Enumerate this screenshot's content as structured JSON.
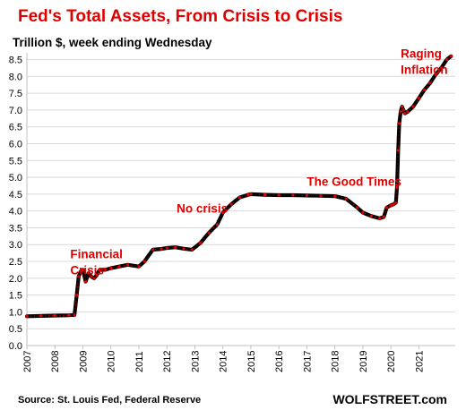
{
  "chart_data": {
    "type": "line",
    "title": "Fed's Total Assets, From Crisis to Crisis",
    "subtitle": "Trillion $, week ending Wednesday",
    "xlabel": "",
    "ylabel": "",
    "xlim": [
      2007,
      2022.3
    ],
    "ylim": [
      0,
      8.7
    ],
    "yticks": [
      "0.0",
      "0.5",
      "1.0",
      "1.5",
      "2.0",
      "2.5",
      "3.0",
      "3.5",
      "4.0",
      "4.5",
      "5.0",
      "5.5",
      "6.0",
      "6.5",
      "7.0",
      "7.5",
      "8.0",
      "8.5"
    ],
    "xticks": [
      "2007",
      "2008",
      "2009",
      "2010",
      "2011",
      "2012",
      "2013",
      "2014",
      "2015",
      "2016",
      "2017",
      "2018",
      "2019",
      "2020",
      "2021"
    ],
    "grid": true,
    "series": [
      {
        "line_color": "#000000",
        "marker_color": "#e00000",
        "x": [
          2007.0,
          2007.5,
          2008.0,
          2008.5,
          2008.7,
          2008.78,
          2008.85,
          2008.92,
          2009.0,
          2009.1,
          2009.2,
          2009.3,
          2009.4,
          2009.5,
          2009.6,
          2009.8,
          2010.0,
          2010.3,
          2010.6,
          2011.0,
          2011.2,
          2011.5,
          2011.8,
          2012.0,
          2012.3,
          2012.6,
          2012.9,
          2013.2,
          2013.5,
          2013.8,
          2014.0,
          2014.3,
          2014.6,
          2014.9,
          2015.0,
          2015.5,
          2016.0,
          2016.5,
          2017.0,
          2017.5,
          2018.0,
          2018.4,
          2018.8,
          2019.0,
          2019.3,
          2019.6,
          2019.75,
          2019.85,
          2020.0,
          2020.1,
          2020.18,
          2020.22,
          2020.26,
          2020.3,
          2020.35,
          2020.4,
          2020.45,
          2020.5,
          2020.6,
          2020.8,
          2021.0,
          2021.2,
          2021.4,
          2021.6,
          2021.8,
          2022.0,
          2022.15
        ],
        "values": [
          0.87,
          0.88,
          0.89,
          0.9,
          0.91,
          1.5,
          2.05,
          2.2,
          2.25,
          1.9,
          2.15,
          2.05,
          2.0,
          2.1,
          2.25,
          2.25,
          2.3,
          2.35,
          2.4,
          2.35,
          2.5,
          2.85,
          2.87,
          2.9,
          2.92,
          2.88,
          2.85,
          3.05,
          3.35,
          3.6,
          3.95,
          4.2,
          4.4,
          4.48,
          4.5,
          4.48,
          4.47,
          4.47,
          4.46,
          4.45,
          4.44,
          4.36,
          4.1,
          3.95,
          3.85,
          3.78,
          3.82,
          4.1,
          4.17,
          4.2,
          4.25,
          4.7,
          5.8,
          6.6,
          6.95,
          7.1,
          7.0,
          6.9,
          6.95,
          7.1,
          7.35,
          7.6,
          7.8,
          8.05,
          8.25,
          8.5,
          8.6
        ]
      }
    ],
    "annotations": [
      {
        "text_lines": [
          "Financial",
          "Crisis"
        ],
        "x": 2008.55,
        "y": 2.6
      },
      {
        "text_lines": [
          "No crisis"
        ],
        "x": 2012.35,
        "y": 3.95
      },
      {
        "text_lines": [
          "The Good Times"
        ],
        "x": 2017.0,
        "y": 4.75
      },
      {
        "text_lines": [
          "Raging",
          "Inflation"
        ],
        "x": 2020.35,
        "y": 8.55
      }
    ]
  },
  "footer": {
    "source": "Source: St. Louis Fed, Federal Reserve",
    "brand": "WOLFSTREET.com"
  }
}
